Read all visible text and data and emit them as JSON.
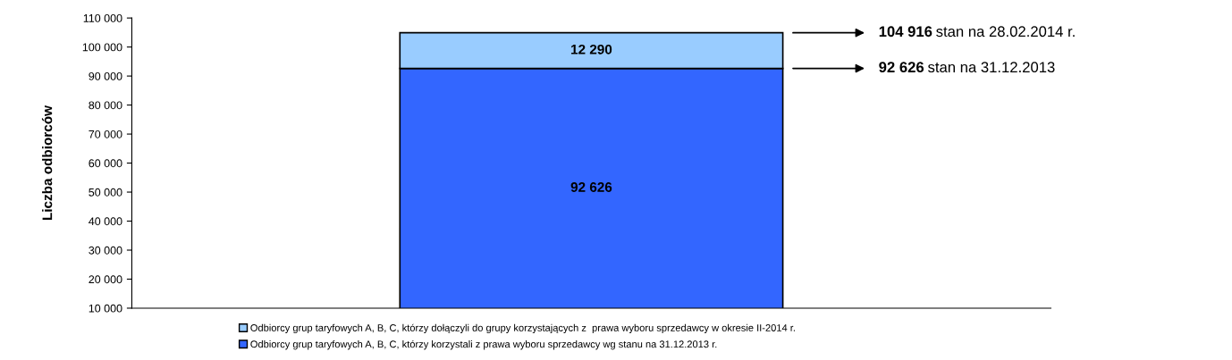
{
  "chart_data": {
    "type": "bar",
    "stacked": true,
    "ylabel": "Liczba odbiorców",
    "categories": [
      null
    ],
    "series": [
      {
        "name": "Odbiorcy grup taryfowych A, B, C, którzy korzystali z prawa wyboru sprzedawcy wg stanu na 31.12.2013 r.",
        "color": "#3366ff",
        "values": [
          92626
        ],
        "value_labels": [
          "92 626"
        ]
      },
      {
        "name": "Odbiorcy grup taryfowych A, B, C, którzy dołączyli do grupy korzystających z  prawa wyboru sprzedawcy w okresie II-2014 r.",
        "color": "#99ccff",
        "values": [
          12290
        ],
        "value_labels": [
          "12 290"
        ]
      }
    ],
    "ylim": [
      10000,
      110000
    ],
    "yticks": [
      {
        "value": 10000,
        "label": "10 000"
      },
      {
        "value": 20000,
        "label": "20 000"
      },
      {
        "value": 30000,
        "label": "30 000"
      },
      {
        "value": 40000,
        "label": "40 000"
      },
      {
        "value": 50000,
        "label": "50 000"
      },
      {
        "value": 60000,
        "label": "60 000"
      },
      {
        "value": 70000,
        "label": "70 000"
      },
      {
        "value": 80000,
        "label": "80 000"
      },
      {
        "value": 90000,
        "label": "90 000"
      },
      {
        "value": 100000,
        "label": "100 000"
      },
      {
        "value": 110000,
        "label": "110 000"
      }
    ],
    "annotations": [
      "104 916 stan na 28.02.2014 r.",
      "92 626 stan na 31.12.2013"
    ],
    "grid": false,
    "legend": "bottom"
  }
}
